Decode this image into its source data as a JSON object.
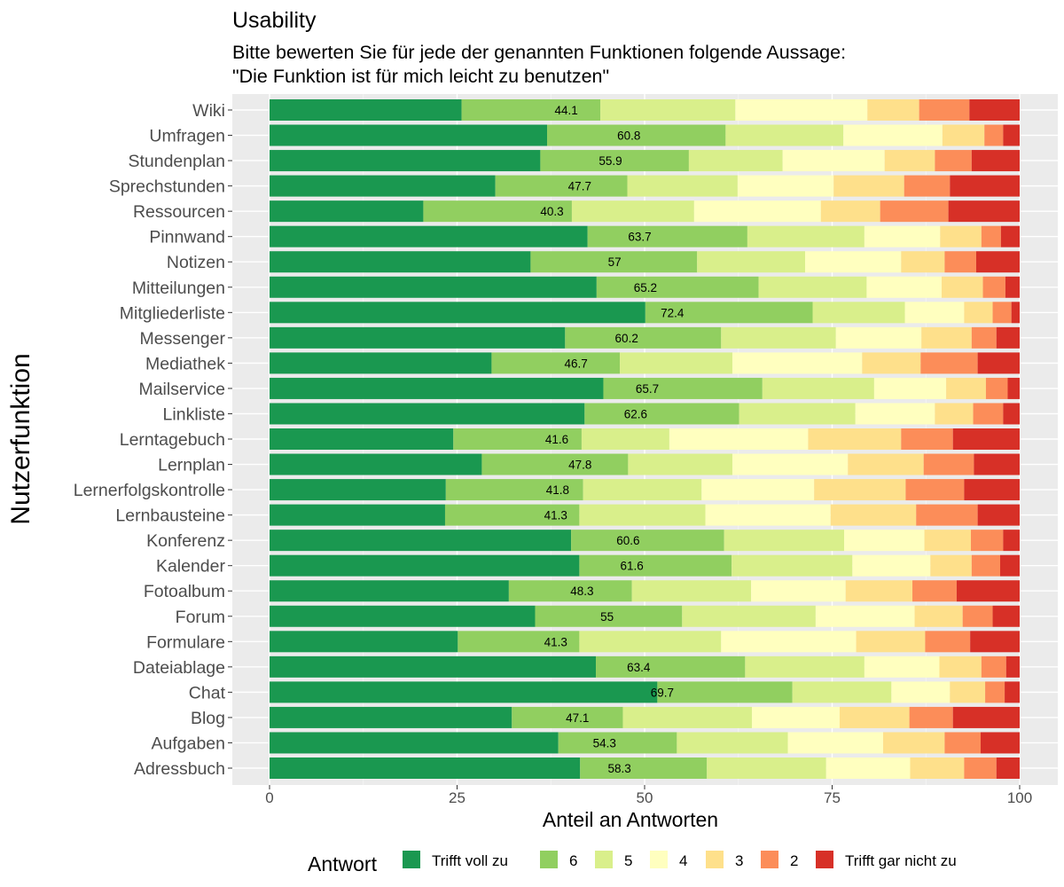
{
  "chart_data": {
    "type": "bar",
    "orientation": "horizontal",
    "stacked": true,
    "title": "Usability",
    "subtitle": [
      "Bitte bewerten Sie für jede der genannten Funktionen folgende Aussage:",
      "\"Die Funktion ist für mich leicht zu benutzen\""
    ],
    "xlabel": "Anteil an Antworten",
    "ylabel": "Nutzerfunktion",
    "xlim": [
      0,
      100
    ],
    "xticks": [
      "0",
      "25",
      "50",
      "75",
      "100"
    ],
    "grid": true,
    "legend": {
      "title": "Antwort",
      "position": "bottom",
      "entries": [
        {
          "label": "Trifft voll zu",
          "color": "#1a9850"
        },
        {
          "label": "6",
          "color": "#91cf60"
        },
        {
          "label": "5",
          "color": "#d9ef8b"
        },
        {
          "label": "4",
          "color": "#ffffbf"
        },
        {
          "label": "3",
          "color": "#fee08b"
        },
        {
          "label": "2",
          "color": "#fc8d59"
        },
        {
          "label": "Trifft gar nicht zu",
          "color": "#d73027"
        }
      ]
    },
    "categories": [
      "Wiki",
      "Umfragen",
      "Stundenplan",
      "Sprechstunden",
      "Ressourcen",
      "Pinnwand",
      "Notizen",
      "Mitteilungen",
      "Mitgliederliste",
      "Messenger",
      "Mediathek",
      "Mailservice",
      "Linkliste",
      "Lerntagebuch",
      "Lernplan",
      "Lernerfolgskontrolle",
      "Lernbausteine",
      "Konferenz",
      "Kalender",
      "Fotoalbum",
      "Forum",
      "Formulare",
      "Dateiablage",
      "Chat",
      "Blog",
      "Aufgaben",
      "Adressbuch"
    ],
    "series": [
      {
        "name": "Trifft voll zu",
        "values": [
          25.6,
          37.0,
          36.1,
          30.1,
          20.5,
          42.4,
          34.8,
          43.6,
          50.1,
          39.4,
          29.6,
          44.5,
          42.0,
          24.5,
          28.3,
          23.5,
          23.4,
          40.2,
          41.3,
          31.9,
          35.4,
          25.1,
          43.5,
          51.7,
          32.3,
          38.5,
          41.4
        ]
      },
      {
        "name": "6",
        "values": [
          18.5,
          23.8,
          19.8,
          17.6,
          19.8,
          21.3,
          22.2,
          21.6,
          22.3,
          20.8,
          17.1,
          21.2,
          20.6,
          17.1,
          19.5,
          18.3,
          17.9,
          20.4,
          20.3,
          16.4,
          19.6,
          16.2,
          19.9,
          18.0,
          14.8,
          15.8,
          16.9
        ]
      },
      {
        "name": "5",
        "values": [
          18.0,
          15.7,
          12.5,
          14.7,
          16.3,
          15.6,
          14.4,
          14.4,
          12.3,
          15.3,
          15.0,
          14.9,
          15.5,
          11.7,
          13.9,
          15.8,
          16.8,
          16.0,
          16.1,
          15.9,
          17.8,
          18.9,
          15.9,
          13.2,
          17.2,
          14.8,
          15.9
        ]
      },
      {
        "name": "4",
        "values": [
          17.6,
          13.2,
          13.6,
          12.8,
          16.9,
          10.1,
          12.8,
          10.0,
          7.9,
          11.4,
          17.3,
          9.6,
          10.6,
          18.5,
          15.4,
          15.0,
          16.7,
          10.7,
          10.4,
          12.6,
          13.2,
          18.0,
          10.0,
          7.8,
          11.7,
          12.7,
          11.2
        ]
      },
      {
        "name": "3",
        "values": [
          6.9,
          5.6,
          6.7,
          9.4,
          7.9,
          5.5,
          5.8,
          5.5,
          3.8,
          6.7,
          7.8,
          5.3,
          5.1,
          12.4,
          10.1,
          12.2,
          11.4,
          6.2,
          5.5,
          8.9,
          6.4,
          9.2,
          5.6,
          4.7,
          9.3,
          8.2,
          7.2
        ]
      },
      {
        "name": "2",
        "values": [
          6.7,
          2.5,
          4.9,
          6.1,
          9.1,
          2.6,
          4.2,
          3.0,
          2.5,
          3.3,
          7.6,
          2.9,
          4.0,
          6.9,
          6.7,
          7.8,
          8.2,
          4.3,
          3.8,
          5.9,
          4.0,
          6.0,
          3.3,
          2.6,
          5.8,
          4.8,
          4.3
        ]
      },
      {
        "name": "Trifft gar nicht zu",
        "values": [
          6.7,
          2.2,
          6.4,
          9.3,
          9.5,
          2.5,
          5.8,
          1.9,
          1.1,
          3.1,
          5.6,
          1.6,
          2.2,
          8.9,
          6.1,
          7.4,
          5.6,
          2.2,
          2.6,
          8.4,
          3.6,
          6.6,
          1.8,
          2.0,
          8.9,
          5.2,
          3.1
        ]
      }
    ],
    "bar_labels": [
      "44.1",
      "60.8",
      "55.9",
      "47.7",
      "40.3",
      "63.7",
      "57",
      "65.2",
      "72.4",
      "60.2",
      "46.7",
      "65.7",
      "62.6",
      "41.6",
      "47.8",
      "41.8",
      "41.3",
      "60.6",
      "61.6",
      "48.3",
      "55",
      "41.3",
      "63.4",
      "69.7",
      "47.1",
      "54.3",
      "58.3"
    ]
  }
}
